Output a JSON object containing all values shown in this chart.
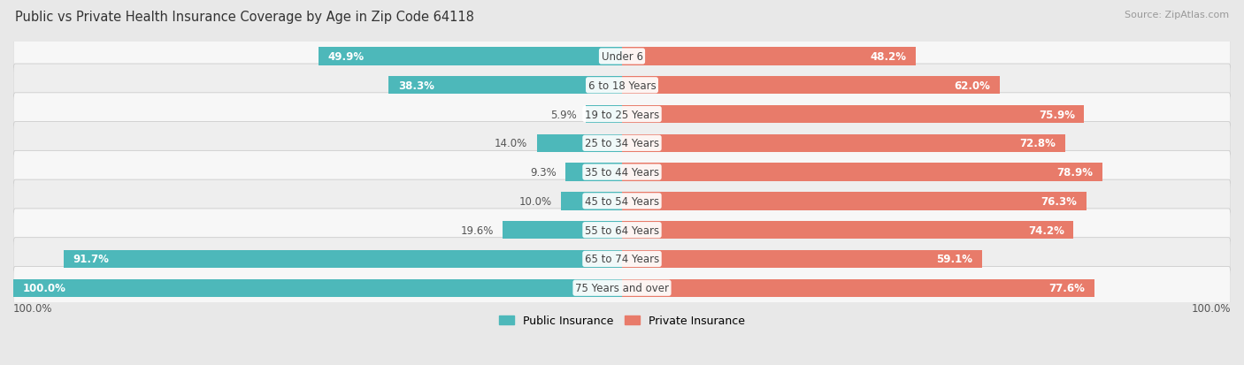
{
  "title": "Public vs Private Health Insurance Coverage by Age in Zip Code 64118",
  "source": "Source: ZipAtlas.com",
  "categories": [
    "Under 6",
    "6 to 18 Years",
    "19 to 25 Years",
    "25 to 34 Years",
    "35 to 44 Years",
    "45 to 54 Years",
    "55 to 64 Years",
    "65 to 74 Years",
    "75 Years and over"
  ],
  "public_values": [
    49.9,
    38.3,
    5.9,
    14.0,
    9.3,
    10.0,
    19.6,
    91.7,
    100.0
  ],
  "private_values": [
    48.2,
    62.0,
    75.9,
    72.8,
    78.9,
    76.3,
    74.2,
    59.1,
    77.6
  ],
  "public_color": "#4db8ba",
  "private_color": "#e87b6a",
  "private_color_light": "#f0a898",
  "bg_color": "#e8e8e8",
  "row_colors": [
    "#f7f7f7",
    "#eeeeee"
  ],
  "max_value": 100.0,
  "title_fontsize": 10.5,
  "label_fontsize": 8.5,
  "category_fontsize": 8.5,
  "legend_fontsize": 9,
  "source_fontsize": 8,
  "inside_label_threshold": 20
}
